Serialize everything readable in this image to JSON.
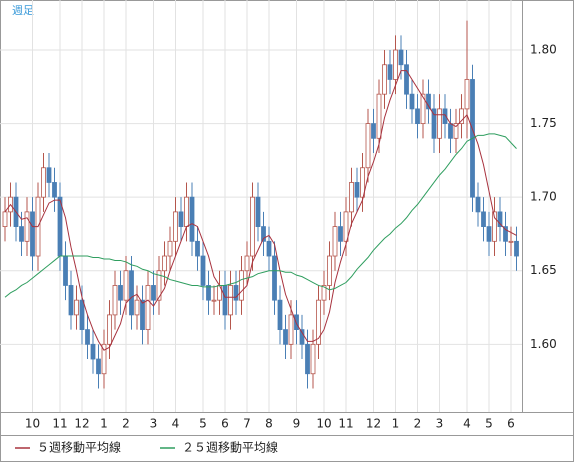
{
  "chart_data": {
    "type": "candlestick",
    "title": "週足",
    "categories": [
      null,
      null,
      null,
      null,
      null,
      "10",
      null,
      null,
      null,
      null,
      "11",
      null,
      null,
      null,
      "12",
      null,
      null,
      null,
      "1",
      null,
      null,
      null,
      "2",
      null,
      null,
      null,
      null,
      "3",
      null,
      null,
      null,
      "4",
      null,
      null,
      null,
      null,
      "5",
      null,
      null,
      null,
      "6",
      null,
      null,
      null,
      "7",
      null,
      null,
      null,
      "8",
      null,
      null,
      null,
      null,
      "9",
      null,
      null,
      null,
      null,
      "10",
      null,
      null,
      null,
      "11",
      null,
      null,
      null,
      null,
      "12",
      null,
      null,
      null,
      "1",
      null,
      null,
      null,
      "2",
      null,
      null,
      null,
      "3",
      null,
      null,
      null,
      null,
      "4",
      null,
      null,
      null,
      "5",
      null,
      null,
      null,
      "6",
      null
    ],
    "open": [
      1.68,
      1.69,
      1.7,
      1.68,
      1.67,
      1.69,
      1.66,
      1.7,
      1.72,
      1.71,
      1.7,
      1.66,
      1.64,
      1.62,
      1.63,
      1.61,
      1.6,
      1.59,
      1.58,
      1.6,
      1.62,
      1.64,
      1.63,
      1.65,
      1.62,
      1.63,
      1.61,
      1.64,
      1.63,
      1.65,
      1.66,
      1.67,
      1.69,
      1.68,
      1.7,
      1.67,
      1.66,
      1.64,
      1.63,
      1.63,
      1.64,
      1.62,
      1.64,
      1.63,
      1.65,
      1.66,
      1.7,
      1.68,
      1.67,
      1.66,
      1.63,
      1.61,
      1.6,
      1.62,
      1.61,
      1.6,
      1.58,
      1.6,
      1.63,
      1.64,
      1.66,
      1.68,
      1.67,
      1.69,
      1.71,
      1.7,
      1.72,
      1.75,
      1.74,
      1.77,
      1.79,
      1.78,
      1.8,
      1.79,
      1.77,
      1.76,
      1.75,
      1.77,
      1.76,
      1.74,
      1.76,
      1.75,
      1.74,
      1.75,
      1.76,
      1.78,
      1.7,
      1.69,
      1.68,
      1.67,
      1.69,
      1.68,
      1.67,
      1.67
    ],
    "high": [
      1.7,
      1.71,
      1.71,
      1.69,
      1.7,
      1.7,
      1.71,
      1.73,
      1.73,
      1.72,
      1.71,
      1.67,
      1.65,
      1.64,
      1.64,
      1.62,
      1.61,
      1.6,
      1.61,
      1.63,
      1.65,
      1.65,
      1.66,
      1.66,
      1.64,
      1.64,
      1.65,
      1.65,
      1.66,
      1.67,
      1.68,
      1.7,
      1.7,
      1.71,
      1.71,
      1.68,
      1.67,
      1.65,
      1.64,
      1.65,
      1.65,
      1.65,
      1.65,
      1.66,
      1.67,
      1.71,
      1.71,
      1.69,
      1.68,
      1.67,
      1.64,
      1.62,
      1.63,
      1.63,
      1.62,
      1.61,
      1.61,
      1.64,
      1.65,
      1.67,
      1.69,
      1.69,
      1.7,
      1.72,
      1.72,
      1.73,
      1.76,
      1.76,
      1.78,
      1.8,
      1.8,
      1.81,
      1.81,
      1.8,
      1.78,
      1.77,
      1.78,
      1.78,
      1.77,
      1.77,
      1.77,
      1.76,
      1.76,
      1.77,
      1.82,
      1.79,
      1.71,
      1.7,
      1.69,
      1.7,
      1.7,
      1.69,
      1.68,
      1.68
    ],
    "low": [
      1.67,
      1.68,
      1.67,
      1.66,
      1.66,
      1.65,
      1.65,
      1.69,
      1.7,
      1.69,
      1.65,
      1.63,
      1.61,
      1.61,
      1.6,
      1.59,
      1.58,
      1.57,
      1.57,
      1.59,
      1.61,
      1.62,
      1.62,
      1.61,
      1.61,
      1.6,
      1.6,
      1.62,
      1.62,
      1.64,
      1.65,
      1.66,
      1.67,
      1.67,
      1.66,
      1.65,
      1.63,
      1.62,
      1.62,
      1.62,
      1.61,
      1.61,
      1.62,
      1.62,
      1.64,
      1.65,
      1.67,
      1.66,
      1.65,
      1.62,
      1.6,
      1.59,
      1.59,
      1.6,
      1.59,
      1.57,
      1.57,
      1.59,
      1.62,
      1.63,
      1.65,
      1.66,
      1.66,
      1.68,
      1.69,
      1.69,
      1.71,
      1.73,
      1.73,
      1.76,
      1.77,
      1.77,
      1.78,
      1.76,
      1.75,
      1.74,
      1.74,
      1.75,
      1.73,
      1.73,
      1.74,
      1.73,
      1.73,
      1.74,
      1.74,
      1.69,
      1.68,
      1.67,
      1.66,
      1.66,
      1.67,
      1.66,
      1.66,
      1.65
    ],
    "close": [
      1.69,
      1.7,
      1.68,
      1.67,
      1.69,
      1.66,
      1.7,
      1.72,
      1.71,
      1.7,
      1.66,
      1.64,
      1.62,
      1.63,
      1.61,
      1.6,
      1.59,
      1.58,
      1.6,
      1.62,
      1.64,
      1.63,
      1.65,
      1.62,
      1.63,
      1.61,
      1.64,
      1.63,
      1.65,
      1.66,
      1.67,
      1.69,
      1.68,
      1.7,
      1.67,
      1.66,
      1.64,
      1.63,
      1.63,
      1.64,
      1.62,
      1.64,
      1.63,
      1.65,
      1.66,
      1.7,
      1.68,
      1.67,
      1.66,
      1.63,
      1.61,
      1.6,
      1.62,
      1.61,
      1.6,
      1.58,
      1.6,
      1.63,
      1.64,
      1.66,
      1.68,
      1.67,
      1.69,
      1.71,
      1.7,
      1.72,
      1.75,
      1.74,
      1.77,
      1.79,
      1.78,
      1.8,
      1.79,
      1.77,
      1.76,
      1.75,
      1.77,
      1.76,
      1.74,
      1.76,
      1.75,
      1.74,
      1.75,
      1.76,
      1.78,
      1.7,
      1.69,
      1.68,
      1.67,
      1.69,
      1.68,
      1.67,
      1.67,
      1.66
    ],
    "up_color": "#b5564c",
    "down_color": "#4a7fb5",
    "series": [
      {
        "name": "５週移動平均線",
        "color": "#a8323e",
        "values": [
          1.69,
          1.695,
          1.69,
          1.685,
          1.686,
          1.68,
          1.68,
          1.688,
          1.696,
          1.698,
          1.698,
          1.686,
          1.666,
          1.65,
          1.632,
          1.62,
          1.61,
          1.602,
          1.596,
          1.598,
          1.606,
          1.614,
          1.628,
          1.632,
          1.634,
          1.628,
          1.63,
          1.626,
          1.632,
          1.638,
          1.65,
          1.66,
          1.67,
          1.68,
          1.682,
          1.68,
          1.67,
          1.66,
          1.646,
          1.64,
          1.632,
          1.632,
          1.632,
          1.636,
          1.64,
          1.656,
          1.664,
          1.672,
          1.674,
          1.668,
          1.65,
          1.634,
          1.624,
          1.614,
          1.608,
          1.602,
          1.602,
          1.604,
          1.61,
          1.622,
          1.642,
          1.656,
          1.668,
          1.682,
          1.69,
          1.698,
          1.714,
          1.724,
          1.736,
          1.754,
          1.766,
          1.776,
          1.786,
          1.786,
          1.78,
          1.774,
          1.768,
          1.762,
          1.756,
          1.756,
          1.756,
          1.75,
          1.748,
          1.752,
          1.756,
          1.746,
          1.736,
          1.722,
          1.704,
          1.686,
          1.682,
          1.678,
          1.676,
          1.674
        ]
      },
      {
        "name": "２５週移動平均線",
        "color": "#2f9e5f",
        "values": [
          1.632,
          1.635,
          1.637,
          1.64,
          1.642,
          1.645,
          1.648,
          1.651,
          1.654,
          1.657,
          1.66,
          1.66,
          1.66,
          1.66,
          1.66,
          1.66,
          1.659,
          1.659,
          1.658,
          1.658,
          1.657,
          1.657,
          1.656,
          1.654,
          1.653,
          1.651,
          1.65,
          1.648,
          1.647,
          1.646,
          1.644,
          1.643,
          1.642,
          1.641,
          1.64,
          1.64,
          1.639,
          1.639,
          1.639,
          1.64,
          1.64,
          1.641,
          1.642,
          1.644,
          1.645,
          1.646,
          1.648,
          1.649,
          1.65,
          1.65,
          1.65,
          1.649,
          1.649,
          1.647,
          1.646,
          1.644,
          1.642,
          1.64,
          1.639,
          1.637,
          1.638,
          1.64,
          1.642,
          1.646,
          1.651,
          1.655,
          1.659,
          1.664,
          1.668,
          1.672,
          1.675,
          1.679,
          1.682,
          1.686,
          1.691,
          1.695,
          1.7,
          1.705,
          1.71,
          1.715,
          1.719,
          1.724,
          1.729,
          1.733,
          1.738,
          1.74,
          1.742,
          1.742,
          1.743,
          1.743,
          1.742,
          1.741,
          1.737,
          1.733
        ]
      }
    ],
    "ylim": [
      1.554,
      1.834
    ],
    "yticks": [
      {
        "value": 1.6,
        "label": "1.60"
      },
      1.65,
      {
        "value": 1.7,
        "label": "1.70"
      },
      1.75,
      {
        "value": 1.8,
        "label": "1.80"
      }
    ],
    "grid": true
  }
}
